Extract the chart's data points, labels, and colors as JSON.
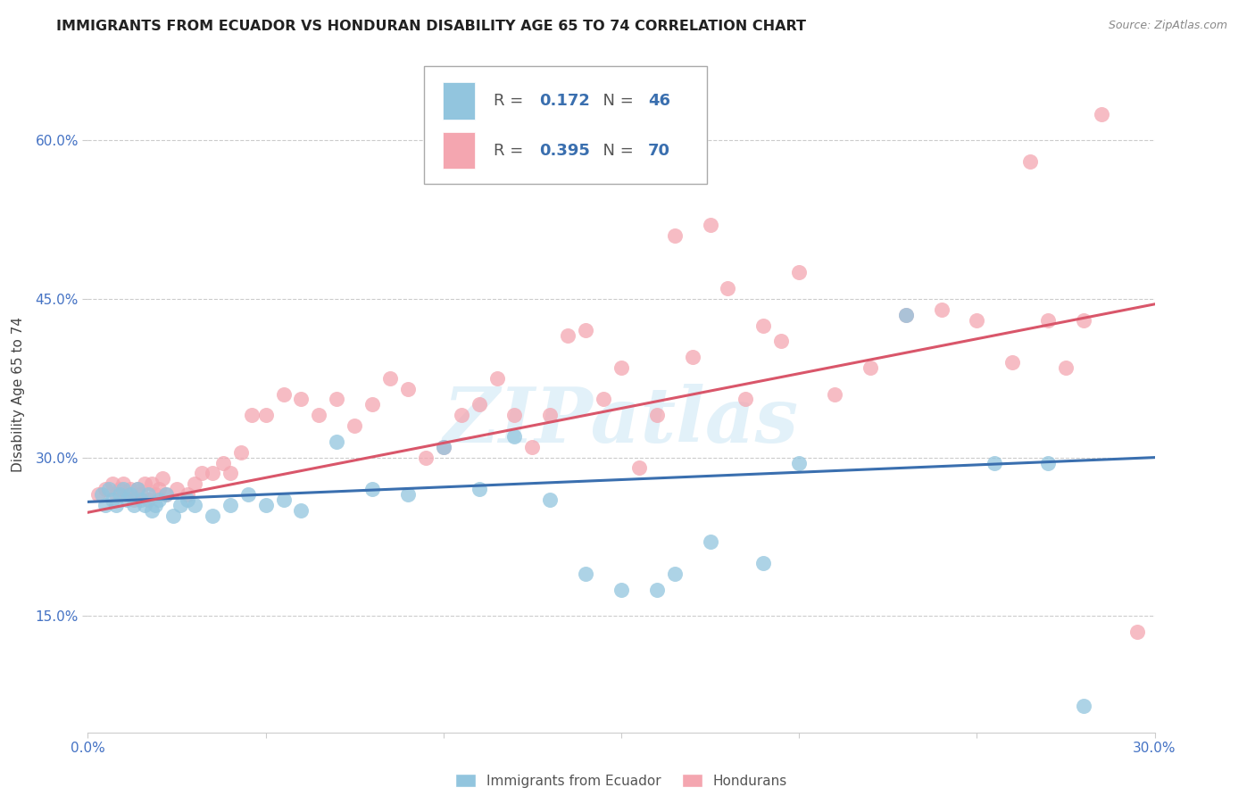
{
  "title": "IMMIGRANTS FROM ECUADOR VS HONDURAN DISABILITY AGE 65 TO 74 CORRELATION CHART",
  "source": "Source: ZipAtlas.com",
  "ylabel": "Disability Age 65 to 74",
  "xlim": [
    0.0,
    0.3
  ],
  "ylim": [
    0.04,
    0.68
  ],
  "xticks": [
    0.0,
    0.05,
    0.1,
    0.15,
    0.2,
    0.25,
    0.3
  ],
  "xtick_labels": [
    "0.0%",
    "",
    "",
    "",
    "",
    "",
    "30.0%"
  ],
  "yticks": [
    0.15,
    0.3,
    0.45,
    0.6
  ],
  "ytick_labels": [
    "15.0%",
    "30.0%",
    "45.0%",
    "60.0%"
  ],
  "ecuador_R": 0.172,
  "ecuador_N": 46,
  "honduran_R": 0.395,
  "honduran_N": 70,
  "ecuador_color": "#92c5de",
  "honduran_color": "#f4a6b0",
  "ecuador_line_color": "#3a6faf",
  "honduran_line_color": "#d9566a",
  "ecuador_x": [
    0.004,
    0.005,
    0.006,
    0.007,
    0.008,
    0.009,
    0.01,
    0.011,
    0.012,
    0.013,
    0.014,
    0.015,
    0.016,
    0.017,
    0.018,
    0.019,
    0.02,
    0.022,
    0.024,
    0.026,
    0.028,
    0.03,
    0.035,
    0.04,
    0.045,
    0.05,
    0.055,
    0.06,
    0.07,
    0.08,
    0.09,
    0.1,
    0.11,
    0.12,
    0.13,
    0.14,
    0.15,
    0.16,
    0.165,
    0.175,
    0.19,
    0.2,
    0.23,
    0.255,
    0.27,
    0.28
  ],
  "ecuador_y": [
    0.265,
    0.255,
    0.27,
    0.26,
    0.255,
    0.265,
    0.27,
    0.26,
    0.265,
    0.255,
    0.27,
    0.26,
    0.255,
    0.265,
    0.25,
    0.255,
    0.26,
    0.265,
    0.245,
    0.255,
    0.26,
    0.255,
    0.245,
    0.255,
    0.265,
    0.255,
    0.26,
    0.25,
    0.315,
    0.27,
    0.265,
    0.31,
    0.27,
    0.32,
    0.26,
    0.19,
    0.175,
    0.175,
    0.19,
    0.22,
    0.2,
    0.295,
    0.435,
    0.295,
    0.295,
    0.065
  ],
  "honduran_x": [
    0.003,
    0.005,
    0.007,
    0.008,
    0.009,
    0.01,
    0.011,
    0.012,
    0.013,
    0.014,
    0.015,
    0.016,
    0.017,
    0.018,
    0.019,
    0.02,
    0.021,
    0.022,
    0.025,
    0.028,
    0.03,
    0.032,
    0.035,
    0.038,
    0.04,
    0.043,
    0.046,
    0.05,
    0.055,
    0.06,
    0.065,
    0.07,
    0.075,
    0.08,
    0.085,
    0.09,
    0.095,
    0.1,
    0.105,
    0.11,
    0.115,
    0.12,
    0.125,
    0.13,
    0.135,
    0.14,
    0.145,
    0.15,
    0.155,
    0.16,
    0.165,
    0.17,
    0.175,
    0.18,
    0.185,
    0.19,
    0.195,
    0.2,
    0.21,
    0.22,
    0.23,
    0.24,
    0.25,
    0.26,
    0.265,
    0.27,
    0.275,
    0.28,
    0.285,
    0.295
  ],
  "honduran_y": [
    0.265,
    0.27,
    0.275,
    0.265,
    0.27,
    0.275,
    0.265,
    0.27,
    0.26,
    0.27,
    0.265,
    0.275,
    0.26,
    0.275,
    0.265,
    0.27,
    0.28,
    0.265,
    0.27,
    0.265,
    0.275,
    0.285,
    0.285,
    0.295,
    0.285,
    0.305,
    0.34,
    0.34,
    0.36,
    0.355,
    0.34,
    0.355,
    0.33,
    0.35,
    0.375,
    0.365,
    0.3,
    0.31,
    0.34,
    0.35,
    0.375,
    0.34,
    0.31,
    0.34,
    0.415,
    0.42,
    0.355,
    0.385,
    0.29,
    0.34,
    0.51,
    0.395,
    0.52,
    0.46,
    0.355,
    0.425,
    0.41,
    0.475,
    0.36,
    0.385,
    0.435,
    0.44,
    0.43,
    0.39,
    0.58,
    0.43,
    0.385,
    0.43,
    0.625,
    0.135
  ],
  "watermark": "ZIPatlas",
  "title_fontsize": 11.5,
  "axis_label_fontsize": 11,
  "tick_fontsize": 11,
  "legend_fontsize": 13
}
